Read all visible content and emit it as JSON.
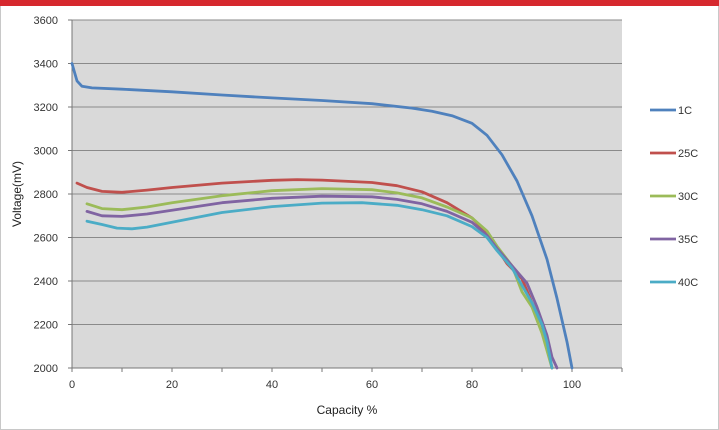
{
  "chart_data": {
    "type": "line",
    "title": "",
    "xlabel": "Capacity %",
    "ylabel": "Voltage(mV)",
    "xlim": [
      0,
      110
    ],
    "ylim": [
      2000,
      3600
    ],
    "xticks": [
      0,
      20,
      40,
      60,
      80,
      100
    ],
    "yticks": [
      2000,
      2200,
      2400,
      2600,
      2800,
      3000,
      3200,
      3400,
      3600
    ],
    "grid": "horizontal",
    "background": "#d9d9d9",
    "legend_position": "right",
    "series": [
      {
        "name": "1C",
        "color": "#4f81bd",
        "points": [
          [
            0,
            3400
          ],
          [
            0.5,
            3360
          ],
          [
            1,
            3320
          ],
          [
            2,
            3295
          ],
          [
            4,
            3288
          ],
          [
            10,
            3282
          ],
          [
            20,
            3270
          ],
          [
            30,
            3255
          ],
          [
            40,
            3242
          ],
          [
            50,
            3230
          ],
          [
            60,
            3215
          ],
          [
            68,
            3195
          ],
          [
            72,
            3180
          ],
          [
            76,
            3160
          ],
          [
            80,
            3125
          ],
          [
            83,
            3070
          ],
          [
            86,
            2980
          ],
          [
            89,
            2860
          ],
          [
            92,
            2700
          ],
          [
            95,
            2500
          ],
          [
            97,
            2320
          ],
          [
            99,
            2120
          ],
          [
            100,
            2000
          ]
        ]
      },
      {
        "name": "25C",
        "color": "#c0504d",
        "points": [
          [
            1,
            2850
          ],
          [
            3,
            2830
          ],
          [
            6,
            2812
          ],
          [
            10,
            2808
          ],
          [
            15,
            2818
          ],
          [
            20,
            2830
          ],
          [
            30,
            2850
          ],
          [
            40,
            2863
          ],
          [
            45,
            2866
          ],
          [
            50,
            2864
          ],
          [
            60,
            2853
          ],
          [
            65,
            2838
          ],
          [
            70,
            2810
          ],
          [
            75,
            2760
          ],
          [
            80,
            2690
          ],
          [
            83,
            2620
          ],
          [
            85,
            2550
          ],
          [
            87,
            2480
          ],
          [
            90,
            2410
          ],
          [
            92,
            2300
          ],
          [
            94,
            2200
          ],
          [
            95,
            2100
          ],
          [
            96,
            2000
          ]
        ]
      },
      {
        "name": "30C",
        "color": "#9bbb59",
        "points": [
          [
            3,
            2755
          ],
          [
            6,
            2733
          ],
          [
            10,
            2728
          ],
          [
            15,
            2740
          ],
          [
            20,
            2760
          ],
          [
            30,
            2792
          ],
          [
            40,
            2815
          ],
          [
            50,
            2825
          ],
          [
            60,
            2820
          ],
          [
            65,
            2805
          ],
          [
            70,
            2782
          ],
          [
            75,
            2740
          ],
          [
            80,
            2690
          ],
          [
            83,
            2630
          ],
          [
            85,
            2560
          ],
          [
            88,
            2470
          ],
          [
            90,
            2350
          ],
          [
            92,
            2280
          ],
          [
            94,
            2160
          ],
          [
            95,
            2080
          ],
          [
            96,
            2000
          ]
        ]
      },
      {
        "name": "35C",
        "color": "#8064a2",
        "points": [
          [
            3,
            2720
          ],
          [
            6,
            2700
          ],
          [
            10,
            2697
          ],
          [
            15,
            2708
          ],
          [
            20,
            2725
          ],
          [
            30,
            2760
          ],
          [
            40,
            2780
          ],
          [
            50,
            2790
          ],
          [
            60,
            2787
          ],
          [
            65,
            2775
          ],
          [
            70,
            2755
          ],
          [
            75,
            2720
          ],
          [
            80,
            2670
          ],
          [
            83,
            2610
          ],
          [
            85,
            2550
          ],
          [
            88,
            2470
          ],
          [
            91,
            2390
          ],
          [
            93,
            2280
          ],
          [
            95,
            2150
          ],
          [
            96,
            2050
          ],
          [
            97,
            2000
          ]
        ]
      },
      {
        "name": "40C",
        "color": "#4bacc6",
        "points": [
          [
            3,
            2675
          ],
          [
            6,
            2660
          ],
          [
            9,
            2643
          ],
          [
            12,
            2640
          ],
          [
            15,
            2648
          ],
          [
            20,
            2670
          ],
          [
            30,
            2715
          ],
          [
            40,
            2742
          ],
          [
            50,
            2758
          ],
          [
            58,
            2760
          ],
          [
            65,
            2748
          ],
          [
            70,
            2728
          ],
          [
            75,
            2700
          ],
          [
            80,
            2650
          ],
          [
            83,
            2600
          ],
          [
            85,
            2540
          ],
          [
            88,
            2460
          ],
          [
            90,
            2380
          ],
          [
            92,
            2300
          ],
          [
            94,
            2200
          ],
          [
            95,
            2120
          ],
          [
            96,
            2000
          ]
        ]
      }
    ]
  }
}
